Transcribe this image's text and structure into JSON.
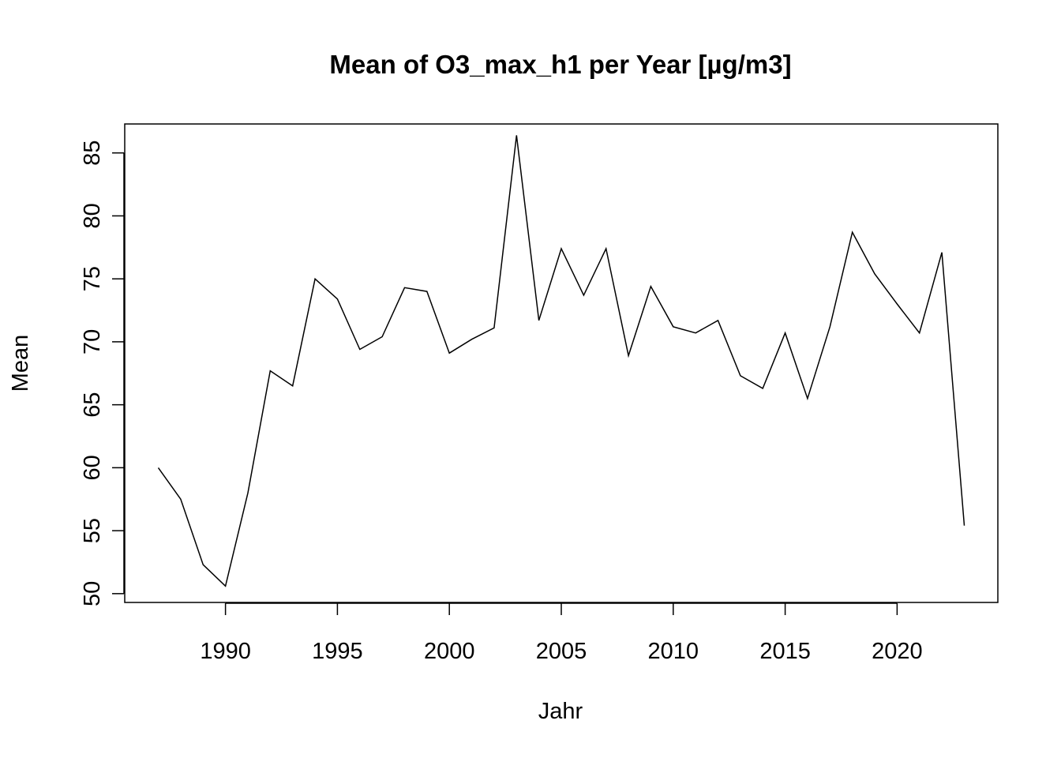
{
  "chart_data": {
    "type": "line",
    "title": "Mean of O3_max_h1 per Year [µg/m3]",
    "xlabel": "Jahr",
    "ylabel": "Mean",
    "xlim": [
      1985.5,
      2024.5
    ],
    "ylim": [
      49.3,
      87.3
    ],
    "x_ticks": [
      1990,
      1995,
      2000,
      2005,
      2010,
      2015,
      2020
    ],
    "y_ticks": [
      50,
      55,
      60,
      65,
      70,
      75,
      80,
      85
    ],
    "x_tick_labels": [
      "1990",
      "1995",
      "2000",
      "2005",
      "2010",
      "2015",
      "2020"
    ],
    "y_tick_labels": [
      "50",
      "55",
      "60",
      "65",
      "70",
      "75",
      "80",
      "85"
    ],
    "grid": false,
    "line_color": "#000000",
    "x": [
      1987,
      1988,
      1989,
      1990,
      1991,
      1992,
      1993,
      1994,
      1995,
      1996,
      1997,
      1998,
      1999,
      2000,
      2001,
      2002,
      2003,
      2004,
      2005,
      2006,
      2007,
      2008,
      2009,
      2010,
      2011,
      2012,
      2013,
      2014,
      2015,
      2016,
      2017,
      2018,
      2019,
      2020,
      2021,
      2022,
      2023
    ],
    "values": [
      60.0,
      57.5,
      52.3,
      50.6,
      58.0,
      67.7,
      66.5,
      75.0,
      73.4,
      69.4,
      70.4,
      74.3,
      74.0,
      69.1,
      70.2,
      71.1,
      86.4,
      71.7,
      77.4,
      73.7,
      77.4,
      68.9,
      74.4,
      71.2,
      70.7,
      71.7,
      67.3,
      66.3,
      70.7,
      65.5,
      71.2,
      78.7,
      75.4,
      73.0,
      70.7,
      77.1,
      55.4
    ]
  }
}
